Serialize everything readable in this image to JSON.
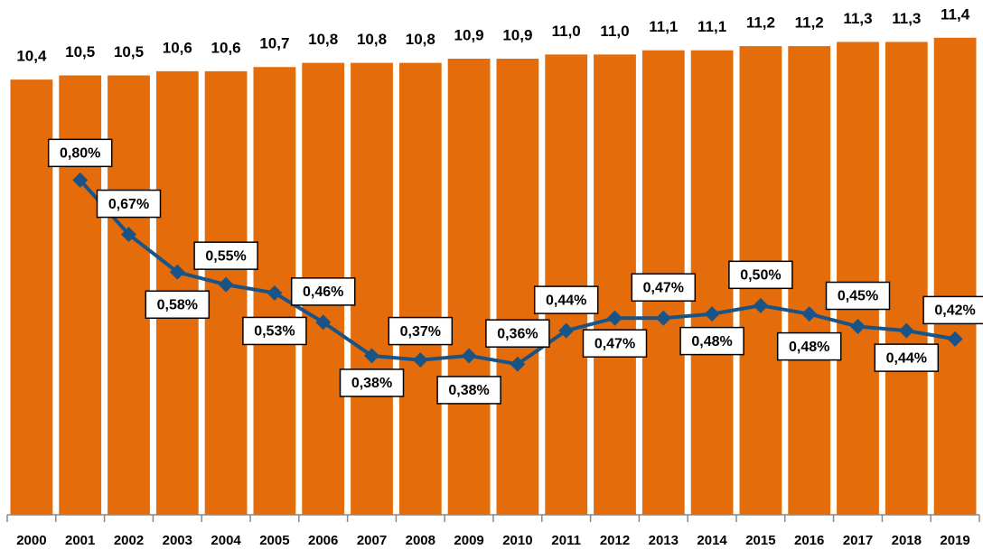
{
  "chart_data": {
    "type": "bar",
    "categories": [
      "2000",
      "2001",
      "2002",
      "2003",
      "2004",
      "2005",
      "2006",
      "2007",
      "2008",
      "2009",
      "2010",
      "2011",
      "2012",
      "2013",
      "2014",
      "2015",
      "2016",
      "2017",
      "2018",
      "2019"
    ],
    "ylim": [
      0,
      12
    ],
    "y2lim": [
      0,
      1.2
    ],
    "series": [
      {
        "type": "bar",
        "color": "#e46c0a",
        "values": [
          10.4,
          10.5,
          10.5,
          10.6,
          10.6,
          10.7,
          10.8,
          10.8,
          10.8,
          10.9,
          10.9,
          11.0,
          11.0,
          11.1,
          11.1,
          11.2,
          11.2,
          11.3,
          11.3,
          11.4
        ],
        "value_labels": [
          "10,4",
          "10,5",
          "10,5",
          "10,6",
          "10,6",
          "10,7",
          "10,8",
          "10,8",
          "10,8",
          "10,9",
          "10,9",
          "11,0",
          "11,0",
          "11,1",
          "11,1",
          "11,2",
          "11,2",
          "11,3",
          "11,3",
          "11,4"
        ]
      },
      {
        "type": "line",
        "axis": "y2",
        "color": "#1a5486",
        "values": [
          null,
          0.8,
          0.67,
          0.58,
          0.55,
          0.53,
          0.46,
          0.38,
          0.37,
          0.38,
          0.36,
          0.44,
          0.47,
          0.47,
          0.48,
          0.5,
          0.48,
          0.45,
          0.44,
          0.42
        ],
        "value_labels": [
          null,
          "0,80%",
          "0,67%",
          "0,58%",
          "0,55%",
          "0,53%",
          "0,46%",
          "0,38%",
          "0,37%",
          "0,38%",
          "0,36%",
          "0,44%",
          "0,47%",
          "0,47%",
          "0,48%",
          "0,50%",
          "0,48%",
          "0,45%",
          "0,44%",
          "0,42%"
        ]
      }
    ]
  }
}
